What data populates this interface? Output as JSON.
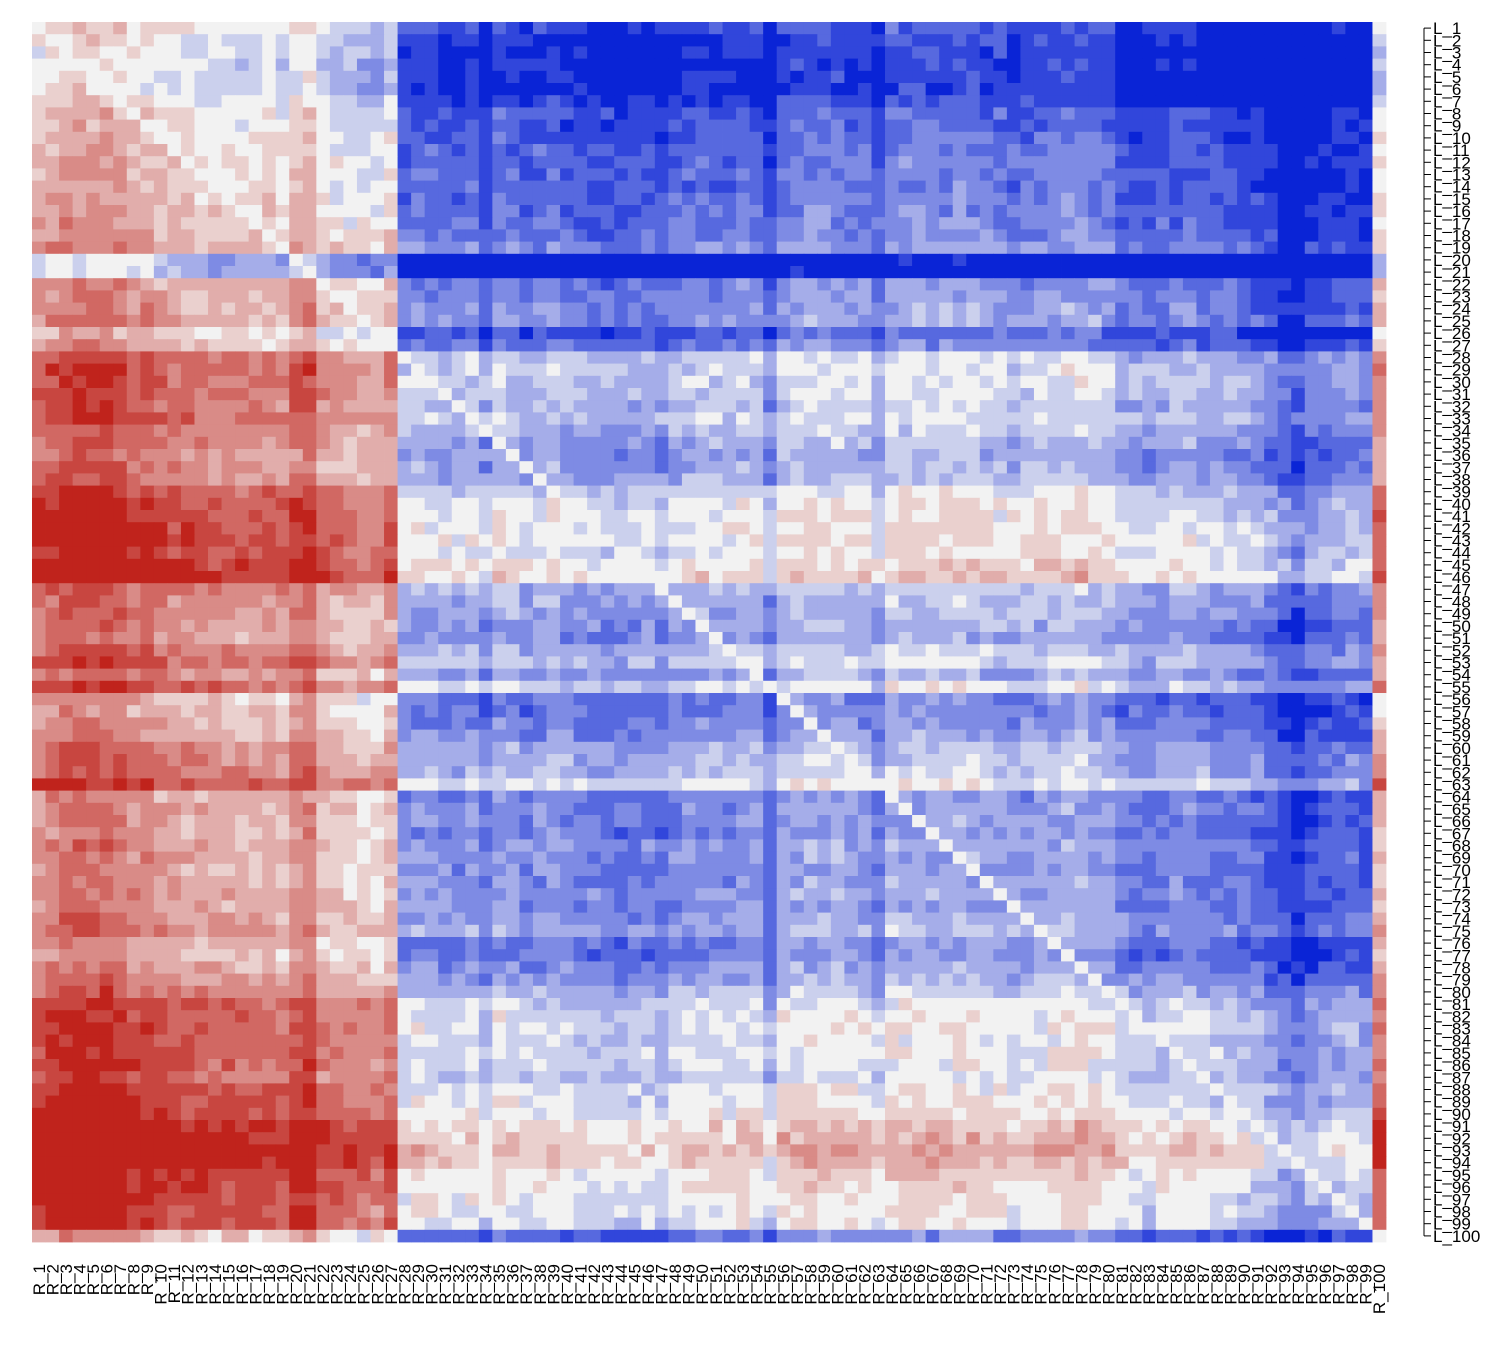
{
  "chart_data": {
    "type": "heatmap",
    "title": "",
    "xlabel": "",
    "ylabel": "",
    "rows": 100,
    "cols": 100,
    "row_prefix": "L_",
    "col_prefix": "R_",
    "row_labels": [
      "L_1",
      "L_2",
      "L_3",
      "L_4",
      "L_5",
      "L_6",
      "L_7",
      "L_8",
      "L_9",
      "L_10",
      "L_11",
      "L_12",
      "L_13",
      "L_14",
      "L_15",
      "L_16",
      "L_17",
      "L_18",
      "L_19",
      "L_20",
      "L_21",
      "L_22",
      "L_23",
      "L_24",
      "L_25",
      "L_26",
      "L_27",
      "L_28",
      "L_29",
      "L_30",
      "L_31",
      "L_32",
      "L_33",
      "L_34",
      "L_35",
      "L_36",
      "L_37",
      "L_38",
      "L_39",
      "L_40",
      "L_41",
      "L_42",
      "L_43",
      "L_44",
      "L_45",
      "L_46",
      "L_47",
      "L_48",
      "L_49",
      "L_50",
      "L_51",
      "L_52",
      "L_53",
      "L_54",
      "L_55",
      "L_56",
      "L_57",
      "L_58",
      "L_59",
      "L_60",
      "L_61",
      "L_62",
      "L_63",
      "L_64",
      "L_65",
      "L_66",
      "L_67",
      "L_68",
      "L_69",
      "L_70",
      "L_71",
      "L_72",
      "L_73",
      "L_74",
      "L_75",
      "L_76",
      "L_77",
      "L_78",
      "L_79",
      "L_80",
      "L_81",
      "L_82",
      "L_83",
      "L_84",
      "L_85",
      "L_86",
      "L_87",
      "L_88",
      "L_89",
      "L_90",
      "L_91",
      "L_92",
      "L_93",
      "L_94",
      "L_95",
      "L_96",
      "L_97",
      "L_98",
      "L_99",
      "L_100"
    ],
    "col_labels": [
      "R_1",
      "R_2",
      "R_3",
      "R_4",
      "R_5",
      "R_6",
      "R_7",
      "R_8",
      "R_9",
      "R_10",
      "R_11",
      "R_12",
      "R_13",
      "R_14",
      "R_15",
      "R_16",
      "R_17",
      "R_18",
      "R_19",
      "R_20",
      "R_21",
      "R_22",
      "R_23",
      "R_24",
      "R_25",
      "R_26",
      "R_27",
      "R_28",
      "R_29",
      "R_30",
      "R_31",
      "R_32",
      "R_33",
      "R_34",
      "R_35",
      "R_36",
      "R_37",
      "R_38",
      "R_39",
      "R_40",
      "R_41",
      "R_42",
      "R_43",
      "R_44",
      "R_45",
      "R_46",
      "R_47",
      "R_48",
      "R_49",
      "R_50",
      "R_51",
      "R_52",
      "R_53",
      "R_54",
      "R_55",
      "R_56",
      "R_57",
      "R_58",
      "R_59",
      "R_60",
      "R_61",
      "R_62",
      "R_63",
      "R_64",
      "R_65",
      "R_66",
      "R_67",
      "R_68",
      "R_69",
      "R_70",
      "R_71",
      "R_72",
      "R_73",
      "R_74",
      "R_75",
      "R_76",
      "R_77",
      "R_78",
      "R_79",
      "R_80",
      "R_81",
      "R_82",
      "R_83",
      "R_84",
      "R_85",
      "R_86",
      "R_87",
      "R_88",
      "R_89",
      "R_90",
      "R_91",
      "R_92",
      "R_93",
      "R_94",
      "R_95",
      "R_96",
      "R_97",
      "R_98",
      "R_99",
      "R_100"
    ],
    "value_range": [
      -1,
      1
    ],
    "colors": {
      "low": "#0a24d6",
      "mid": "#f2f2f2",
      "high": "#c0231c"
    },
    "row_effects": [
      -0.35,
      -0.42,
      -0.44,
      -0.46,
      -0.45,
      -0.47,
      -0.4,
      -0.3,
      -0.32,
      -0.28,
      -0.26,
      -0.25,
      -0.24,
      -0.26,
      -0.23,
      -0.22,
      -0.2,
      -0.18,
      -0.12,
      -0.6,
      -0.58,
      -0.15,
      -0.12,
      -0.1,
      -0.08,
      -0.3,
      -0.2,
      0.1,
      0.12,
      0.11,
      0.1,
      0.05,
      0.12,
      0.02,
      0.0,
      -0.05,
      -0.02,
      0.0,
      0.15,
      0.2,
      0.22,
      0.24,
      0.25,
      0.22,
      0.3,
      0.35,
      0.05,
      0.0,
      -0.02,
      -0.05,
      -0.08,
      0.05,
      0.1,
      -0.05,
      0.15,
      -0.2,
      -0.18,
      -0.15,
      -0.1,
      0.0,
      0.02,
      0.05,
      0.18,
      -0.15,
      -0.1,
      -0.12,
      -0.15,
      -0.08,
      -0.1,
      -0.12,
      -0.1,
      -0.08,
      -0.1,
      -0.05,
      0.0,
      -0.15,
      -0.18,
      -0.1,
      -0.05,
      0.05,
      0.15,
      0.18,
      0.2,
      0.15,
      0.18,
      0.15,
      0.1,
      0.2,
      0.22,
      0.25,
      0.35,
      0.4,
      0.45,
      0.4,
      0.3,
      0.28,
      0.25,
      0.22,
      0.2,
      -0.2
    ],
    "col_effects": [
      0.45,
      0.5,
      0.55,
      0.58,
      0.56,
      0.55,
      0.52,
      0.45,
      0.48,
      0.4,
      0.38,
      0.36,
      0.35,
      0.34,
      0.35,
      0.33,
      0.32,
      0.34,
      0.3,
      0.42,
      0.5,
      0.28,
      0.25,
      0.22,
      0.2,
      0.18,
      0.3,
      -0.25,
      -0.22,
      -0.24,
      -0.26,
      -0.28,
      -0.22,
      -0.35,
      -0.2,
      -0.24,
      -0.3,
      -0.26,
      -0.22,
      -0.28,
      -0.3,
      -0.32,
      -0.34,
      -0.36,
      -0.33,
      -0.3,
      -0.35,
      -0.28,
      -0.25,
      -0.22,
      -0.24,
      -0.26,
      -0.2,
      -0.22,
      -0.4,
      -0.18,
      -0.15,
      -0.14,
      -0.16,
      -0.15,
      -0.18,
      -0.2,
      -0.3,
      -0.15,
      -0.14,
      -0.13,
      -0.15,
      -0.16,
      -0.14,
      -0.15,
      -0.18,
      -0.2,
      -0.22,
      -0.2,
      -0.18,
      -0.16,
      -0.14,
      -0.12,
      -0.18,
      -0.2,
      -0.3,
      -0.32,
      -0.35,
      -0.3,
      -0.28,
      -0.26,
      -0.3,
      -0.32,
      -0.34,
      -0.36,
      -0.38,
      -0.45,
      -0.55,
      -0.6,
      -0.5,
      -0.45,
      -0.42,
      -0.4,
      -0.44,
      0.3
    ]
  }
}
